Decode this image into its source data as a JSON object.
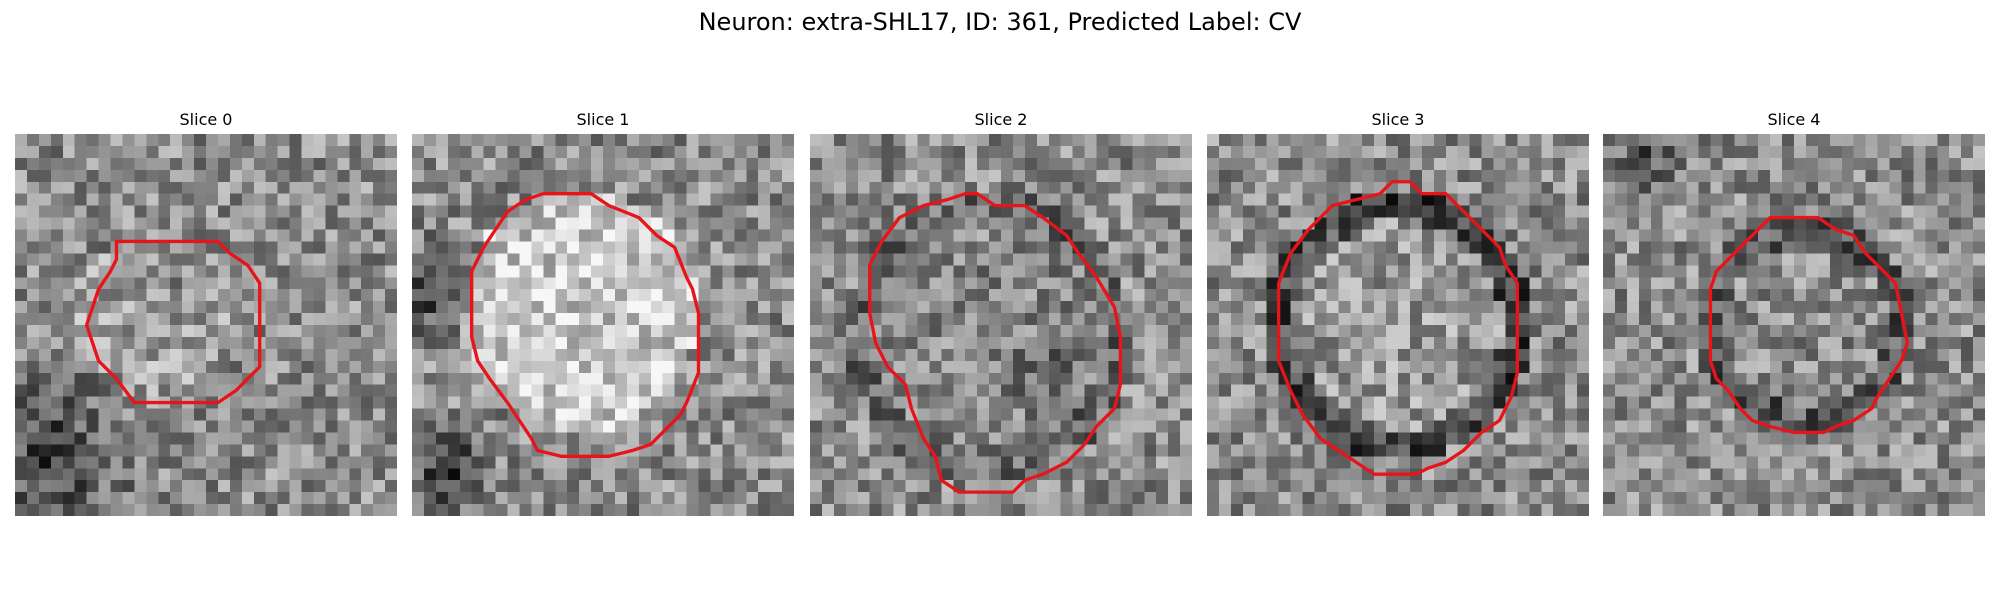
{
  "figure": {
    "title": "Neuron: extra-SHL17, ID: 361, Predicted Label: CV"
  },
  "panels": [
    {
      "label": "Slice 0"
    },
    {
      "label": "Slice 1"
    },
    {
      "label": "Slice 2"
    },
    {
      "label": "Slice 3"
    },
    {
      "label": "Slice 4"
    }
  ],
  "colors": {
    "contour": "#e8141b",
    "background": "#ffffff"
  },
  "image": {
    "colormap": "grayscale",
    "grid_cells": 32
  }
}
